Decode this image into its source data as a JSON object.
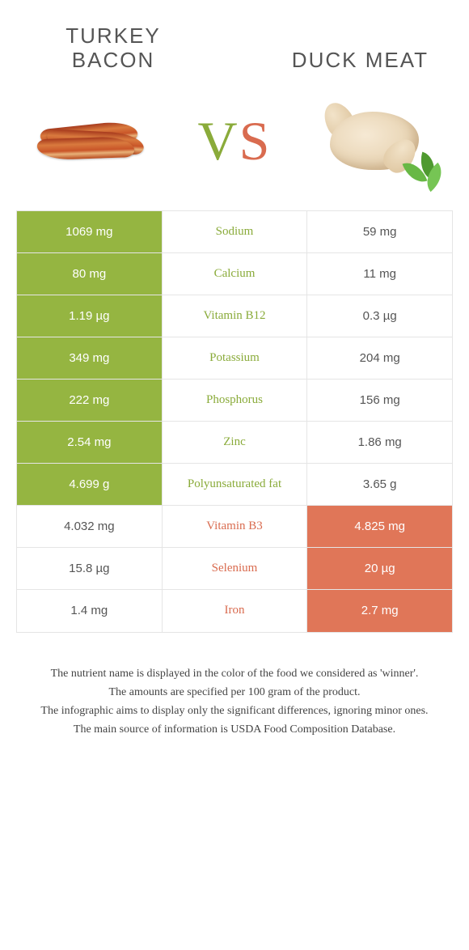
{
  "header": {
    "left_title": "TURKEY\nBACON",
    "right_title": "DUCK MEAT",
    "vs_v": "V",
    "vs_s": "S"
  },
  "colors": {
    "left": "#95b541",
    "right": "#e07658",
    "left_text_on_white": "#8aab3a",
    "right_text_on_white": "#d96b4f",
    "white": "#ffffff"
  },
  "rows": [
    {
      "name": "Sodium",
      "left": "1069 mg",
      "right": "59 mg",
      "winner": "left"
    },
    {
      "name": "Calcium",
      "left": "80 mg",
      "right": "11 mg",
      "winner": "left"
    },
    {
      "name": "Vitamin B12",
      "left": "1.19 µg",
      "right": "0.3 µg",
      "winner": "left"
    },
    {
      "name": "Potassium",
      "left": "349 mg",
      "right": "204 mg",
      "winner": "left"
    },
    {
      "name": "Phosphorus",
      "left": "222 mg",
      "right": "156 mg",
      "winner": "left"
    },
    {
      "name": "Zinc",
      "left": "2.54 mg",
      "right": "1.86 mg",
      "winner": "left"
    },
    {
      "name": "Polyunsaturated fat",
      "left": "4.699 g",
      "right": "3.65 g",
      "winner": "left"
    },
    {
      "name": "Vitamin B3",
      "left": "4.032 mg",
      "right": "4.825 mg",
      "winner": "right"
    },
    {
      "name": "Selenium",
      "left": "15.8 µg",
      "right": "20 µg",
      "winner": "right"
    },
    {
      "name": "Iron",
      "left": "1.4 mg",
      "right": "2.7 mg",
      "winner": "right"
    }
  ],
  "notes": [
    "The nutrient name is displayed in the color of the food we considered as 'winner'.",
    "The amounts are specified per 100 gram of the product.",
    "The infographic aims to display only the significant differences, ignoring minor ones.",
    "The main source of information is USDA Food Composition Database."
  ]
}
